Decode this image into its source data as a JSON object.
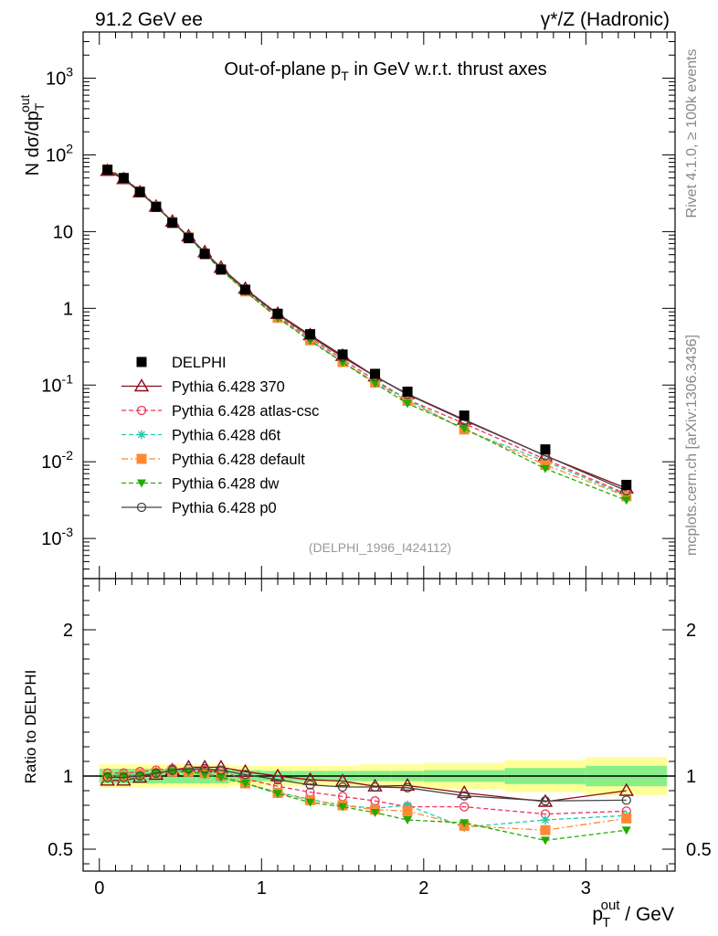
{
  "header": {
    "left_label": "91.2 GeV ee",
    "right_label": "γ*/Z (Hadronic)"
  },
  "side_labels": {
    "rivet": "Rivet 4.1.0, ≥ 100k events",
    "mcplots": "mcplots.cern.ch [arXiv:1306.3436]"
  },
  "chart_data": {
    "type": "line",
    "title": "Out-of-plane p_T in GeV w.r.t. thrust axes",
    "analysis_label": "(DELPHI_1996_I424112)",
    "ylabel_main": "N  dσ/dp_T^out",
    "ylabel_ratio": "Ratio to DELPHI",
    "xlabel": "p_T^out / GeV",
    "xlim": [
      -0.1,
      3.55
    ],
    "ylim_main": [
      0.0003,
      4000
    ],
    "ylim_ratio": [
      0.35,
      2.35
    ],
    "yscale_main": "log",
    "x_ticks": [
      0,
      1,
      2,
      3
    ],
    "y_ticks_main": [
      "10^-3",
      "10^-2",
      "10^-1",
      "1",
      "10",
      "10^2",
      "10^3"
    ],
    "y_ticks_ratio": [
      "0.5",
      "1",
      "2"
    ],
    "x": [
      0.05,
      0.15,
      0.25,
      0.35,
      0.45,
      0.55,
      0.65,
      0.75,
      0.9,
      1.1,
      1.3,
      1.5,
      1.7,
      1.9,
      2.25,
      2.75,
      3.25
    ],
    "bin_edges": [
      0.0,
      0.1,
      0.2,
      0.3,
      0.4,
      0.5,
      0.6,
      0.7,
      0.8,
      1.0,
      1.2,
      1.4,
      1.6,
      1.8,
      2.0,
      2.5,
      3.0,
      3.5
    ],
    "band_inner": [
      0.05,
      0.05,
      0.05,
      0.05,
      0.05,
      0.05,
      0.05,
      0.05,
      0.04,
      0.035,
      0.035,
      0.035,
      0.035,
      0.035,
      0.04,
      0.055,
      0.07
    ],
    "band_outer": [
      0.08,
      0.08,
      0.08,
      0.08,
      0.08,
      0.08,
      0.08,
      0.08,
      0.07,
      0.07,
      0.07,
      0.07,
      0.08,
      0.08,
      0.09,
      0.11,
      0.13
    ],
    "data": {
      "name": "DELPHI",
      "values": [
        64,
        50,
        33,
        21,
        13,
        8.2,
        5.1,
        3.2,
        1.75,
        0.85,
        0.46,
        0.25,
        0.14,
        0.082,
        0.04,
        0.0145,
        0.005
      ]
    },
    "series": [
      {
        "name": "Pythia 6.428 370",
        "color": "#8b0a1a",
        "marker": "triangle-open",
        "dash": "solid",
        "ratio": [
          0.97,
          0.97,
          0.99,
          1.01,
          1.04,
          1.06,
          1.06,
          1.06,
          1.03,
          1.0,
          0.975,
          0.965,
          0.93,
          0.935,
          0.885,
          0.825,
          0.9
        ]
      },
      {
        "name": "Pythia 6.428 atlas-csc",
        "color": "#ee3355",
        "marker": "circle-open",
        "dash": "dashed",
        "ratio": [
          1.02,
          1.02,
          1.03,
          1.04,
          1.05,
          1.05,
          1.04,
          1.03,
          0.98,
          0.93,
          0.89,
          0.86,
          0.83,
          0.79,
          0.79,
          0.74,
          0.76
        ]
      },
      {
        "name": "Pythia 6.428 d6t",
        "color": "#22ccaa",
        "marker": "star",
        "dash": "dashed",
        "ratio": [
          1.0,
          1.01,
          1.01,
          1.02,
          1.03,
          1.03,
          1.02,
          1.0,
          0.95,
          0.89,
          0.84,
          0.8,
          0.78,
          0.8,
          0.65,
          0.7,
          0.73
        ]
      },
      {
        "name": "Pythia 6.428 default",
        "color": "#ff8833",
        "marker": "square",
        "dash": "dashdot",
        "ratio": [
          1.0,
          1.0,
          1.01,
          1.02,
          1.03,
          1.03,
          1.02,
          1.0,
          0.95,
          0.885,
          0.835,
          0.8,
          0.77,
          0.76,
          0.66,
          0.63,
          0.71
        ]
      },
      {
        "name": "Pythia 6.428 dw",
        "color": "#22aa00",
        "marker": "triangle-down",
        "dash": "dashed",
        "ratio": [
          1.0,
          1.0,
          1.0,
          1.02,
          1.03,
          1.03,
          1.01,
          0.99,
          0.95,
          0.88,
          0.82,
          0.79,
          0.75,
          0.7,
          0.68,
          0.56,
          0.63
        ]
      },
      {
        "name": "Pythia 6.428 p0",
        "color": "#444444",
        "marker": "circle-open",
        "dash": "solid",
        "ratio": [
          0.99,
          0.99,
          1.0,
          1.02,
          1.04,
          1.05,
          1.05,
          1.04,
          1.01,
          0.975,
          0.94,
          0.925,
          0.925,
          0.92,
          0.865,
          0.83,
          0.835
        ]
      }
    ]
  }
}
